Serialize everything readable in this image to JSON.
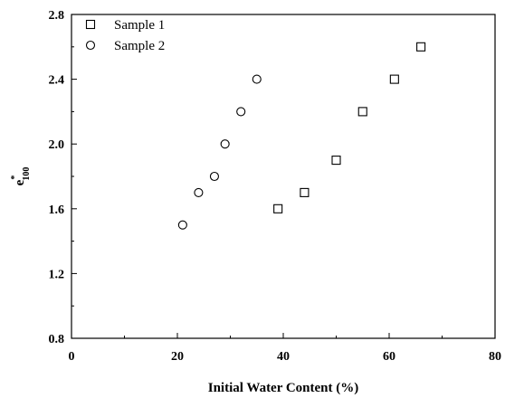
{
  "chart_data": {
    "type": "scatter",
    "xlabel": "Initial Water Content (%)",
    "ylabel": "e",
    "ylabel_sup": "*",
    "ylabel_sub": "100",
    "xlim": [
      0,
      80
    ],
    "ylim": [
      0.8,
      2.8
    ],
    "xticks": [
      0,
      20,
      40,
      60,
      80
    ],
    "yticks": [
      0.8,
      1.2,
      1.6,
      2.0,
      2.4,
      2.8
    ],
    "xtick_labels": [
      "0",
      "20",
      "40",
      "60",
      "80"
    ],
    "ytick_labels": [
      "0.8",
      "1.2",
      "1.6",
      "2.0",
      "2.4",
      "2.8"
    ],
    "grid": false,
    "legend_position": "top-left",
    "series": [
      {
        "name": "Sample 1",
        "marker": "square",
        "x": [
          39,
          44,
          50,
          55,
          61,
          66
        ],
        "y": [
          1.6,
          1.7,
          1.9,
          2.2,
          2.4,
          2.6
        ]
      },
      {
        "name": "Sample 2",
        "marker": "circle",
        "x": [
          21,
          24,
          27,
          29,
          32,
          35
        ],
        "y": [
          1.5,
          1.7,
          1.8,
          2.0,
          2.2,
          2.4
        ]
      }
    ]
  }
}
